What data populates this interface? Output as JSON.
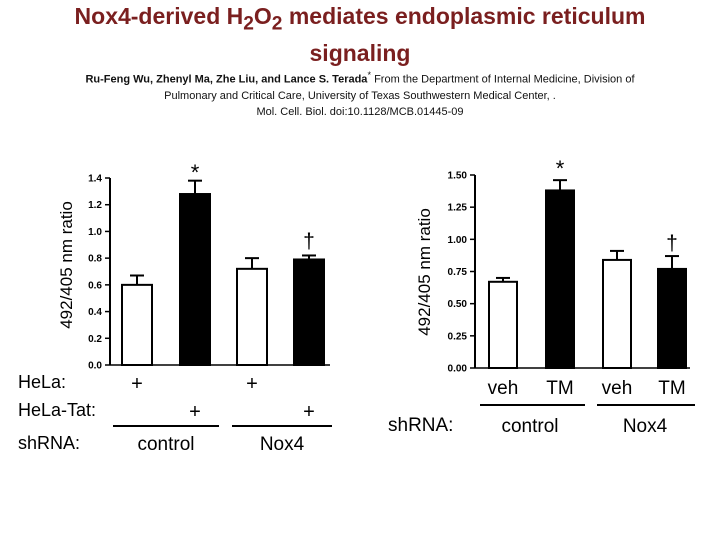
{
  "slide": {
    "title_main": "Nox4-derived H",
    "title_sub1": "2",
    "title_mid": "O",
    "title_sub2": "2",
    "title_rest": " mediates endoplasmic reticulum",
    "title_line2": "signaling",
    "authors": "Ru-Feng Wu, Zhenyl Ma, Zhe Liu, and Lance S. Terada",
    "affiliation_1": " From the Department of Internal Medicine, Division of",
    "affiliation_2": "Pulmonary and Critical Care, University of Texas Southwestern Medical Center, .",
    "citation": "Mol. Cell. Biol. doi:10.1128/MCB.01445-09"
  },
  "chart_data": [
    {
      "type": "bar",
      "ylabel": "492/405 nm ratio",
      "ylim": [
        0,
        1.4
      ],
      "yticks": [
        "0.0",
        "0.2",
        "0.4",
        "0.6",
        "0.8",
        "1.0",
        "1.2",
        "1.4"
      ],
      "values": [
        0.6,
        1.28,
        0.72,
        0.79
      ],
      "errors": [
        0.07,
        0.1,
        0.08,
        0.03
      ],
      "fills": [
        "#ffffff",
        "#000000",
        "#ffffff",
        "#000000"
      ],
      "annotations": [
        "",
        "*",
        "",
        "†"
      ],
      "row_labels": [
        "HeLa:",
        "HeLa-Tat:",
        "shRNA:"
      ],
      "hela": [
        "+",
        "",
        "+",
        ""
      ],
      "hela_tat": [
        "",
        "+",
        "",
        "+"
      ],
      "groups": [
        "control",
        "Nox4"
      ]
    },
    {
      "type": "bar",
      "ylabel": "492/405 nm ratio",
      "ylim": [
        0,
        1.5
      ],
      "yticks": [
        "0.00",
        "0.25",
        "0.50",
        "0.75",
        "1.00",
        "1.25",
        "1.50"
      ],
      "categories": [
        "veh",
        "TM",
        "veh",
        "TM"
      ],
      "values": [
        0.67,
        1.38,
        0.84,
        0.77
      ],
      "errors": [
        0.03,
        0.08,
        0.07,
        0.1
      ],
      "fills": [
        "#ffffff",
        "#000000",
        "#ffffff",
        "#000000"
      ],
      "annotations": [
        "",
        "*",
        "",
        "†"
      ],
      "row_label": "shRNA:",
      "groups": [
        "control",
        "Nox4"
      ]
    }
  ]
}
